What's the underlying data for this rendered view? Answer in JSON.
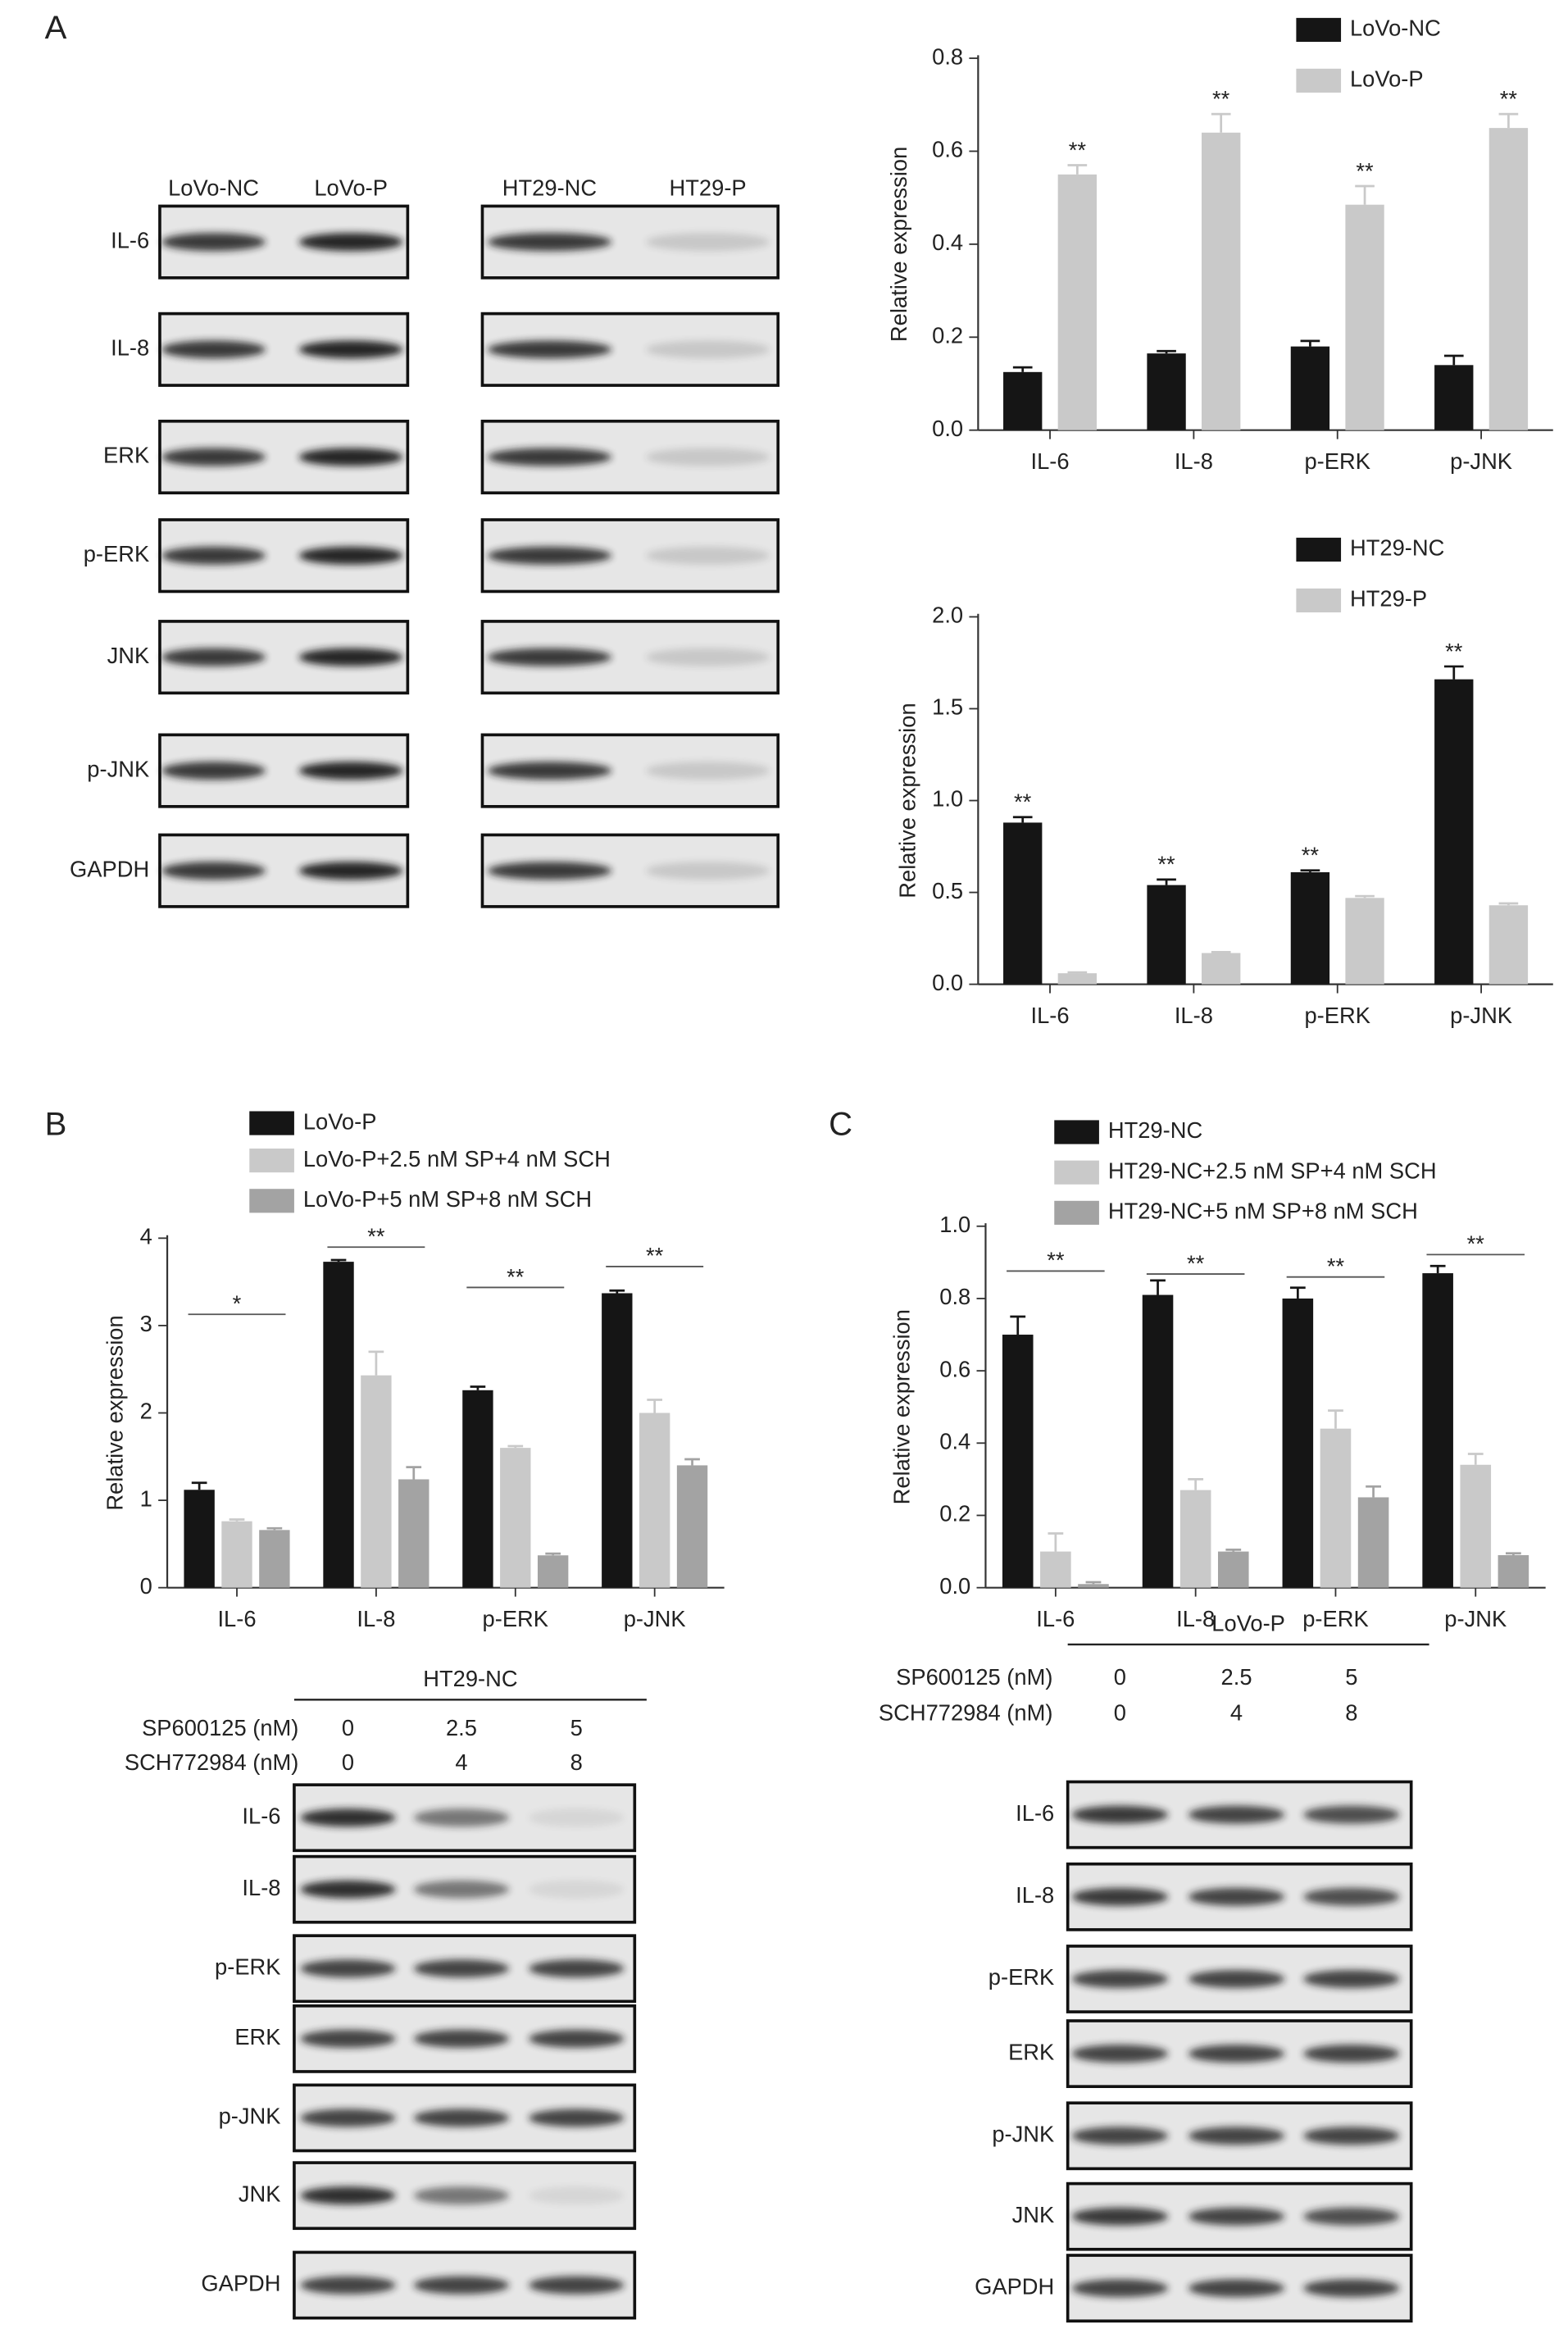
{
  "panel_labels": [
    "A",
    "B",
    "C"
  ],
  "chart_data": [
    {
      "type": "bar",
      "y_label": "Relative expression",
      "categories": [
        "IL-6",
        "IL-8",
        "p-ERK",
        "p-JNK"
      ],
      "series": [
        {
          "name": "LoVo-NC",
          "color": "#151515",
          "values": [
            0.125,
            0.165,
            0.18,
            0.14
          ],
          "errors": [
            0.01,
            0.005,
            0.012,
            0.02
          ]
        },
        {
          "name": "LoVo-P",
          "color": "#c9c9c9",
          "values": [
            0.55,
            0.64,
            0.485,
            0.65
          ],
          "errors": [
            0.02,
            0.04,
            0.04,
            0.03
          ],
          "significance": [
            "**",
            "**",
            "**",
            "**"
          ]
        }
      ],
      "ylim": [
        0,
        0.8
      ],
      "yticks": [
        {
          "value": 0,
          "label": "0.0"
        },
        0.2,
        0.4,
        0.6,
        0.8
      ]
    },
    {
      "type": "bar",
      "y_label": "Relative expression",
      "categories": [
        "IL-6",
        "IL-8",
        "p-ERK",
        "p-JNK"
      ],
      "series": [
        {
          "name": "HT29-NC",
          "color": "#151515",
          "values": [
            0.88,
            0.54,
            0.61,
            1.66
          ],
          "errors": [
            0.03,
            0.03,
            0.01,
            0.07
          ],
          "significance": [
            "**",
            "**",
            "**",
            "**"
          ]
        },
        {
          "name": "HT29-P",
          "color": "#c9c9c9",
          "values": [
            0.06,
            0.17,
            0.47,
            0.43
          ],
          "errors": [
            0.005,
            0.005,
            0.01,
            0.01
          ]
        }
      ],
      "ylim": [
        0,
        2
      ],
      "yticks": [
        {
          "value": 0,
          "label": "0.0"
        },
        0.5,
        {
          "value": 1,
          "label": "1.0"
        },
        1.5,
        {
          "value": 2,
          "label": "2.0"
        }
      ]
    },
    {
      "type": "bar",
      "y_label": "Relative expression",
      "categories": [
        "IL-6",
        "IL-8",
        "p-ERK",
        "p-JNK"
      ],
      "series": [
        {
          "name": "LoVo-P",
          "color": "#151515",
          "values": [
            1.12,
            3.73,
            2.26,
            3.37
          ],
          "errors": [
            0.08,
            0.02,
            0.04,
            0.03
          ]
        },
        {
          "name": "LoVo-P+2.5 nM SP+4 nM SCH",
          "color": "#c9c9c9",
          "values": [
            0.76,
            2.43,
            1.6,
            2.0
          ],
          "errors": [
            0.02,
            0.27,
            0.02,
            0.15
          ]
        },
        {
          "name": "LoVo-P+5 nM SP+8 nM SCH",
          "color": "#a3a3a3",
          "values": [
            0.66,
            1.24,
            0.37,
            1.4
          ],
          "errors": [
            0.02,
            0.14,
            0.02,
            0.07
          ]
        }
      ],
      "significance": [
        "*",
        "**",
        "**",
        "**"
      ],
      "ylim": [
        0,
        4
      ],
      "yticks": [
        0,
        1,
        2,
        3,
        4
      ]
    },
    {
      "type": "bar",
      "y_label": "Relative expression",
      "categories": [
        "IL-6",
        "IL-8",
        "p-ERK",
        "p-JNK"
      ],
      "series": [
        {
          "name": "HT29-NC",
          "color": "#151515",
          "values": [
            0.7,
            0.81,
            0.8,
            0.87
          ],
          "errors": [
            0.05,
            0.04,
            0.03,
            0.02
          ]
        },
        {
          "name": "HT29-NC+2.5 nM SP+4 nM SCH",
          "color": "#c9c9c9",
          "values": [
            0.1,
            0.27,
            0.44,
            0.34
          ],
          "errors": [
            0.05,
            0.03,
            0.05,
            0.03
          ]
        },
        {
          "name": "HT29-NC+5 nM SP+8 nM SCH",
          "color": "#a3a3a3",
          "values": [
            0.01,
            0.1,
            0.25,
            0.09
          ],
          "errors": [
            0.005,
            0.005,
            0.03,
            0.005
          ]
        }
      ],
      "significance": [
        "**",
        "**",
        "**",
        "**"
      ],
      "ylim": [
        0,
        1
      ],
      "yticks": [
        {
          "value": 0,
          "label": "0.0"
        },
        0.2,
        0.4,
        0.6,
        0.8,
        {
          "value": 1,
          "label": "1.0"
        }
      ]
    }
  ],
  "blots": [
    {
      "lanes": [
        "LoVo-NC",
        "LoVo-P"
      ],
      "rows": [
        "IL-6",
        "IL-8",
        "ERK",
        "p-ERK",
        "JNK",
        "p-JNK",
        "GAPDH"
      ]
    },
    {
      "lanes": [
        "HT29-NC",
        "HT29-P"
      ]
    },
    {
      "title": "HT29-NC",
      "treatments": [
        {
          "name": "SP600125 (nM)",
          "doses": [
            0,
            2.5,
            5
          ]
        },
        {
          "name": "SCH772984 (nM)",
          "doses": [
            0,
            4,
            8
          ]
        }
      ],
      "rows": [
        "IL-6",
        "IL-8",
        "p-ERK",
        "ERK",
        "p-JNK",
        "JNK",
        "GAPDH"
      ]
    },
    {
      "title": "LoVo-P",
      "treatments": [
        {
          "name": "SP600125 (nM)",
          "doses": [
            0,
            2.5,
            5
          ]
        },
        {
          "name": "SCH772984 (nM)",
          "doses": [
            0,
            4,
            8
          ]
        }
      ],
      "rows": [
        "IL-6",
        "IL-8",
        "p-ERK",
        "ERK",
        "p-JNK",
        "JNK",
        "GAPDH"
      ]
    }
  ]
}
